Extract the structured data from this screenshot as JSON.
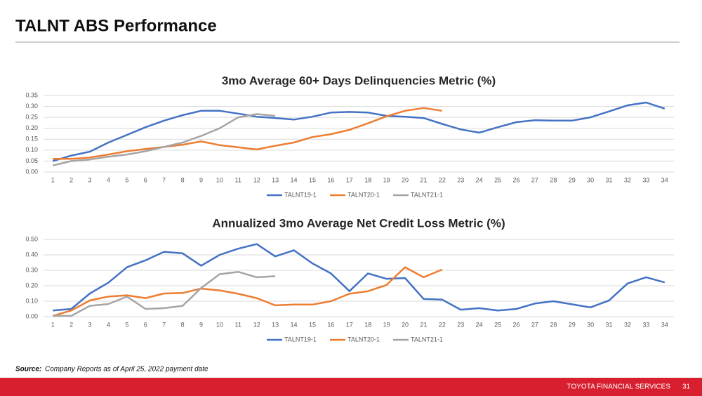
{
  "header": {
    "title": "TALNT ABS Performance"
  },
  "chart_data": [
    {
      "type": "line",
      "title": "3mo Average 60+ Days Delinquencies Metric (%)",
      "categories": [
        "1",
        "2",
        "3",
        "4",
        "5",
        "6",
        "7",
        "8",
        "9",
        "10",
        "11",
        "12",
        "13",
        "14",
        "15",
        "16",
        "17",
        "18",
        "19",
        "20",
        "21",
        "22",
        "23",
        "24",
        "25",
        "26",
        "27",
        "28",
        "29",
        "30",
        "31",
        "32",
        "33",
        "34"
      ],
      "ylim": [
        0,
        0.35
      ],
      "yticks": [
        {
          "value": 0,
          "label": "0.00"
        },
        {
          "value": 0.05,
          "label": "0.05"
        },
        {
          "value": 0.1,
          "label": "0.10"
        },
        {
          "value": 0.15,
          "label": "0.15"
        },
        {
          "value": 0.2,
          "label": "0.20"
        },
        {
          "value": 0.25,
          "label": "0.25"
        },
        {
          "value": 0.3,
          "label": "0.30"
        },
        {
          "value": 0.35,
          "label": "0.35"
        }
      ],
      "grid": true,
      "legend": "bottom",
      "series": [
        {
          "name": "TALNT19-1",
          "color": "#4472c4",
          "values": [
            0.05,
            0.075,
            0.093,
            0.135,
            0.17,
            0.205,
            0.235,
            0.26,
            0.28,
            0.28,
            0.267,
            0.253,
            0.247,
            0.24,
            0.253,
            0.272,
            0.275,
            0.272,
            0.257,
            0.253,
            0.247,
            0.22,
            0.195,
            0.18,
            0.205,
            0.228,
            0.237,
            0.235,
            0.235,
            0.25,
            0.277,
            0.305,
            0.318,
            0.29
          ]
        },
        {
          "name": "TALNT20-1",
          "color": "#ed7d31",
          "values": [
            0.06,
            0.06,
            0.066,
            0.08,
            0.095,
            0.105,
            0.115,
            0.125,
            0.14,
            0.123,
            0.113,
            0.103,
            0.12,
            0.135,
            0.16,
            0.173,
            0.193,
            0.223,
            0.255,
            0.28,
            0.293,
            0.28,
            null,
            null,
            null,
            null,
            null,
            null,
            null,
            null,
            null,
            null,
            null,
            null
          ]
        },
        {
          "name": "TALNT21-1",
          "color": "#a5a5a5",
          "values": [
            0.03,
            0.05,
            0.057,
            0.07,
            0.08,
            0.095,
            0.115,
            0.135,
            0.165,
            0.2,
            0.25,
            0.265,
            0.257,
            null,
            null,
            null,
            null,
            null,
            null,
            null,
            null,
            null,
            null,
            null,
            null,
            null,
            null,
            null,
            null,
            null,
            null,
            null,
            null,
            null
          ]
        }
      ]
    },
    {
      "type": "line",
      "title": "Annualized 3mo Average Net Credit Loss Metric (%)",
      "categories": [
        "1",
        "2",
        "3",
        "4",
        "5",
        "6",
        "7",
        "8",
        "9",
        "10",
        "11",
        "12",
        "13",
        "14",
        "15",
        "16",
        "17",
        "18",
        "19",
        "20",
        "21",
        "22",
        "23",
        "24",
        "25",
        "26",
        "27",
        "28",
        "29",
        "30",
        "31",
        "32",
        "33",
        "34"
      ],
      "ylim": [
        0,
        0.5
      ],
      "yticks": [
        {
          "value": 0,
          "label": "0.00"
        },
        {
          "value": 0.1,
          "label": "0.10"
        },
        {
          "value": 0.2,
          "label": "0.20"
        },
        {
          "value": 0.3,
          "label": "0.30"
        },
        {
          "value": 0.4,
          "label": "0.40"
        },
        {
          "value": 0.5,
          "label": "0.50"
        }
      ],
      "grid": true,
      "legend": "bottom",
      "series": [
        {
          "name": "TALNT19-1",
          "color": "#4472c4",
          "values": [
            0.04,
            0.05,
            0.15,
            0.22,
            0.32,
            0.365,
            0.42,
            0.41,
            0.33,
            0.4,
            0.44,
            0.47,
            0.39,
            0.43,
            0.345,
            0.28,
            0.165,
            0.28,
            0.245,
            0.25,
            0.115,
            0.11,
            0.045,
            0.055,
            0.04,
            0.05,
            0.085,
            0.1,
            0.08,
            0.06,
            0.105,
            0.215,
            0.255,
            0.222
          ]
        },
        {
          "name": "TALNT20-1",
          "color": "#ed7d31",
          "values": [
            0.005,
            0.04,
            0.105,
            0.13,
            0.138,
            0.12,
            0.15,
            0.153,
            0.182,
            0.17,
            0.148,
            0.12,
            0.073,
            0.078,
            0.078,
            0.1,
            0.148,
            0.165,
            0.205,
            0.32,
            0.255,
            0.305,
            null,
            null,
            null,
            null,
            null,
            null,
            null,
            null,
            null,
            null,
            null,
            null
          ]
        },
        {
          "name": "TALNT21-1",
          "color": "#a5a5a5",
          "values": [
            0.005,
            0.005,
            0.07,
            0.082,
            0.13,
            0.05,
            0.055,
            0.07,
            0.185,
            0.275,
            0.29,
            0.255,
            0.262,
            null,
            null,
            null,
            null,
            null,
            null,
            null,
            null,
            null,
            null,
            null,
            null,
            null,
            null,
            null,
            null,
            null,
            null,
            null,
            null,
            null
          ]
        }
      ]
    }
  ],
  "source": {
    "label": "Source:",
    "text": "Company Reports as of April 25, 2022 payment date"
  },
  "footer": {
    "company": "TOYOTA FINANCIAL SERVICES",
    "page": "31"
  }
}
